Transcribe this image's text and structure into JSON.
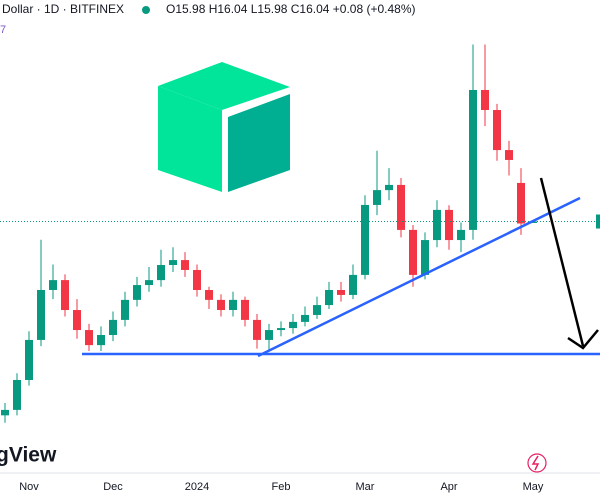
{
  "chart_data": {
    "type": "candlestick",
    "title": "Dollar · 1D · BITFINEX",
    "subtitle": "O15.98 H16.04 L15.98 C16.04 +0.08 (+0.48%)",
    "indicator_label": "7",
    "watermark": "gView",
    "categories": [
      null,
      null,
      "Nov",
      null,
      null,
      null,
      null,
      null,
      null,
      "Dec",
      null,
      null,
      null,
      null,
      null,
      null,
      "2024",
      null,
      null,
      null,
      null,
      null,
      null,
      "Feb",
      null,
      null,
      null,
      null,
      null,
      null,
      "Mar",
      null,
      null,
      null,
      null,
      null,
      null,
      "Apr",
      null,
      null,
      null,
      null,
      null,
      null,
      "May"
    ],
    "open": [
      8.2,
      8.42,
      9.63,
      11.25,
      13.27,
      13.67,
      12.46,
      11.65,
      11.04,
      11.45,
      12.06,
      12.87,
      13.47,
      13.67,
      14.28,
      14.48,
      14.08,
      13.27,
      12.87,
      12.46,
      12.87,
      12.06,
      11.25,
      11.65,
      11.73,
      11.98,
      12.26,
      12.66,
      13.27,
      13.07,
      13.88,
      16.71,
      17.31,
      17.52,
      15.7,
      13.88,
      15.29,
      16.51,
      15.29,
      15.7,
      21.36,
      20.55,
      18.93,
      17.6,
      15.98
    ],
    "high": [
      8.7,
      9.9,
      11.6,
      15.3,
      14.3,
      13.9,
      12.9,
      11.9,
      11.8,
      12.4,
      13.2,
      13.8,
      14.2,
      14.9,
      15.0,
      14.8,
      14.3,
      13.4,
      13.1,
      13.2,
      13.0,
      12.3,
      11.9,
      12.0,
      12.3,
      12.6,
      13.0,
      13.6,
      13.6,
      14.3,
      17.1,
      18.9,
      18.2,
      17.8,
      15.9,
      15.6,
      16.9,
      16.7,
      16.0,
      23.2,
      23.2,
      20.8,
      19.3,
      18.2,
      16.04
    ],
    "low": [
      7.9,
      8.2,
      9.4,
      11.0,
      12.9,
      12.2,
      11.3,
      10.8,
      10.8,
      11.2,
      11.8,
      12.6,
      13.2,
      13.4,
      14.0,
      13.8,
      13.0,
      12.5,
      12.2,
      12.2,
      11.8,
      10.9,
      10.8,
      11.4,
      11.5,
      11.8,
      12.1,
      12.5,
      12.8,
      12.9,
      13.7,
      16.3,
      16.9,
      15.4,
      13.4,
      13.7,
      15.0,
      14.9,
      14.8,
      15.3,
      19.9,
      18.5,
      17.9,
      15.5,
      15.98
    ],
    "close": [
      8.42,
      9.63,
      11.25,
      13.27,
      13.67,
      12.46,
      11.65,
      11.04,
      11.45,
      12.06,
      12.87,
      13.47,
      13.67,
      14.28,
      14.48,
      14.08,
      13.27,
      12.87,
      12.46,
      12.87,
      12.06,
      11.25,
      11.65,
      11.73,
      11.98,
      12.26,
      12.66,
      13.27,
      13.07,
      13.88,
      16.71,
      17.31,
      17.52,
      15.7,
      13.88,
      15.29,
      16.51,
      15.29,
      15.7,
      21.36,
      20.55,
      18.93,
      18.53,
      15.96,
      16.04
    ],
    "up_color": "#089981",
    "down_color": "#f23645",
    "ylim": [
      7,
      25
    ]
  }
}
